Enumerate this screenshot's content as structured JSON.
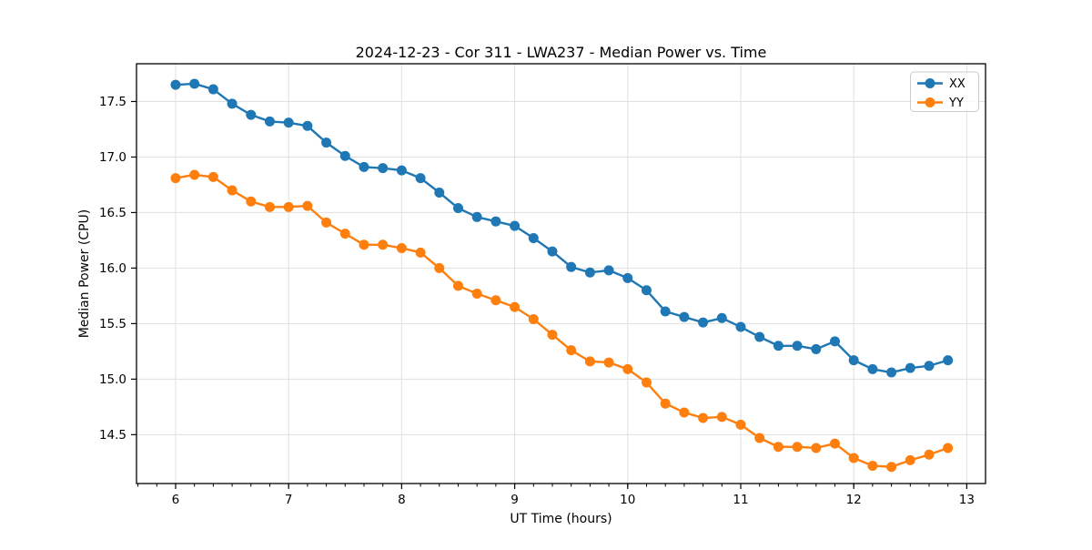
{
  "figure": {
    "title": "2024-12-23 - Cor 311 - LWA237 - Median Power vs. Time"
  },
  "chart_data": {
    "type": "line",
    "title": "2024-12-23 - Cor 311 - LWA237 - Median Power vs. Time",
    "xlabel": "UT Time (hours)",
    "ylabel": "Median Power (CPU)",
    "x": [
      6.0,
      6.1667,
      6.3333,
      6.5,
      6.6667,
      6.8333,
      7.0,
      7.1667,
      7.3333,
      7.5,
      7.6667,
      7.8333,
      8.0,
      8.1667,
      8.3333,
      8.5,
      8.6667,
      8.8333,
      9.0,
      9.1667,
      9.3333,
      9.5,
      9.6667,
      9.8333,
      10.0,
      10.1667,
      10.3333,
      10.5,
      10.6667,
      10.8333,
      11.0,
      11.1667,
      11.3333,
      11.5,
      11.6667,
      11.8333,
      12.0,
      12.1667,
      12.3333,
      12.5,
      12.6667,
      12.8333
    ],
    "series": [
      {
        "name": "XX",
        "color": "#1f77b4",
        "values": [
          17.65,
          17.66,
          17.61,
          17.48,
          17.38,
          17.32,
          17.31,
          17.28,
          17.13,
          17.01,
          16.91,
          16.9,
          16.88,
          16.81,
          16.68,
          16.54,
          16.46,
          16.42,
          16.38,
          16.27,
          16.15,
          16.01,
          15.96,
          15.98,
          15.91,
          15.8,
          15.61,
          15.56,
          15.51,
          15.55,
          15.47,
          15.38,
          15.3,
          15.3,
          15.27,
          15.34,
          15.17,
          15.09,
          15.06,
          15.1,
          15.12,
          15.17
        ]
      },
      {
        "name": "YY",
        "color": "#ff7f0e",
        "values": [
          16.81,
          16.84,
          16.82,
          16.7,
          16.6,
          16.55,
          16.55,
          16.56,
          16.41,
          16.31,
          16.21,
          16.21,
          16.18,
          16.14,
          16.0,
          15.84,
          15.77,
          15.71,
          15.65,
          15.54,
          15.4,
          15.26,
          15.16,
          15.15,
          15.09,
          14.97,
          14.78,
          14.7,
          14.65,
          14.66,
          14.59,
          14.47,
          14.39,
          14.39,
          14.38,
          14.42,
          14.29,
          14.22,
          14.21,
          14.27,
          14.32,
          14.38
        ]
      }
    ],
    "xlim": [
      5.654,
      13.166
    ],
    "ylim": [
      14.06,
      17.84
    ],
    "xticks": [
      6,
      7,
      8,
      9,
      10,
      11,
      12,
      13
    ],
    "xtick_labels": [
      "6",
      "7",
      "8",
      "9",
      "10",
      "11",
      "12",
      "13"
    ],
    "yticks": [
      14.5,
      15.0,
      15.5,
      16.0,
      16.5,
      17.0,
      17.5
    ],
    "ytick_labels": [
      "14.5",
      "15.0",
      "15.5",
      "16.0",
      "16.5",
      "17.0",
      "17.5"
    ],
    "x_minor_step": 0.16667,
    "grid": true,
    "legend": {
      "position": "upper right",
      "entries": [
        "XX",
        "YY"
      ]
    },
    "marker": "circle",
    "marker_size": 5.5,
    "line_width": 2.4,
    "colors": {
      "grid": "#e0e0e0",
      "spine": "#000000",
      "text": "#000000",
      "background": "#ffffff"
    }
  }
}
